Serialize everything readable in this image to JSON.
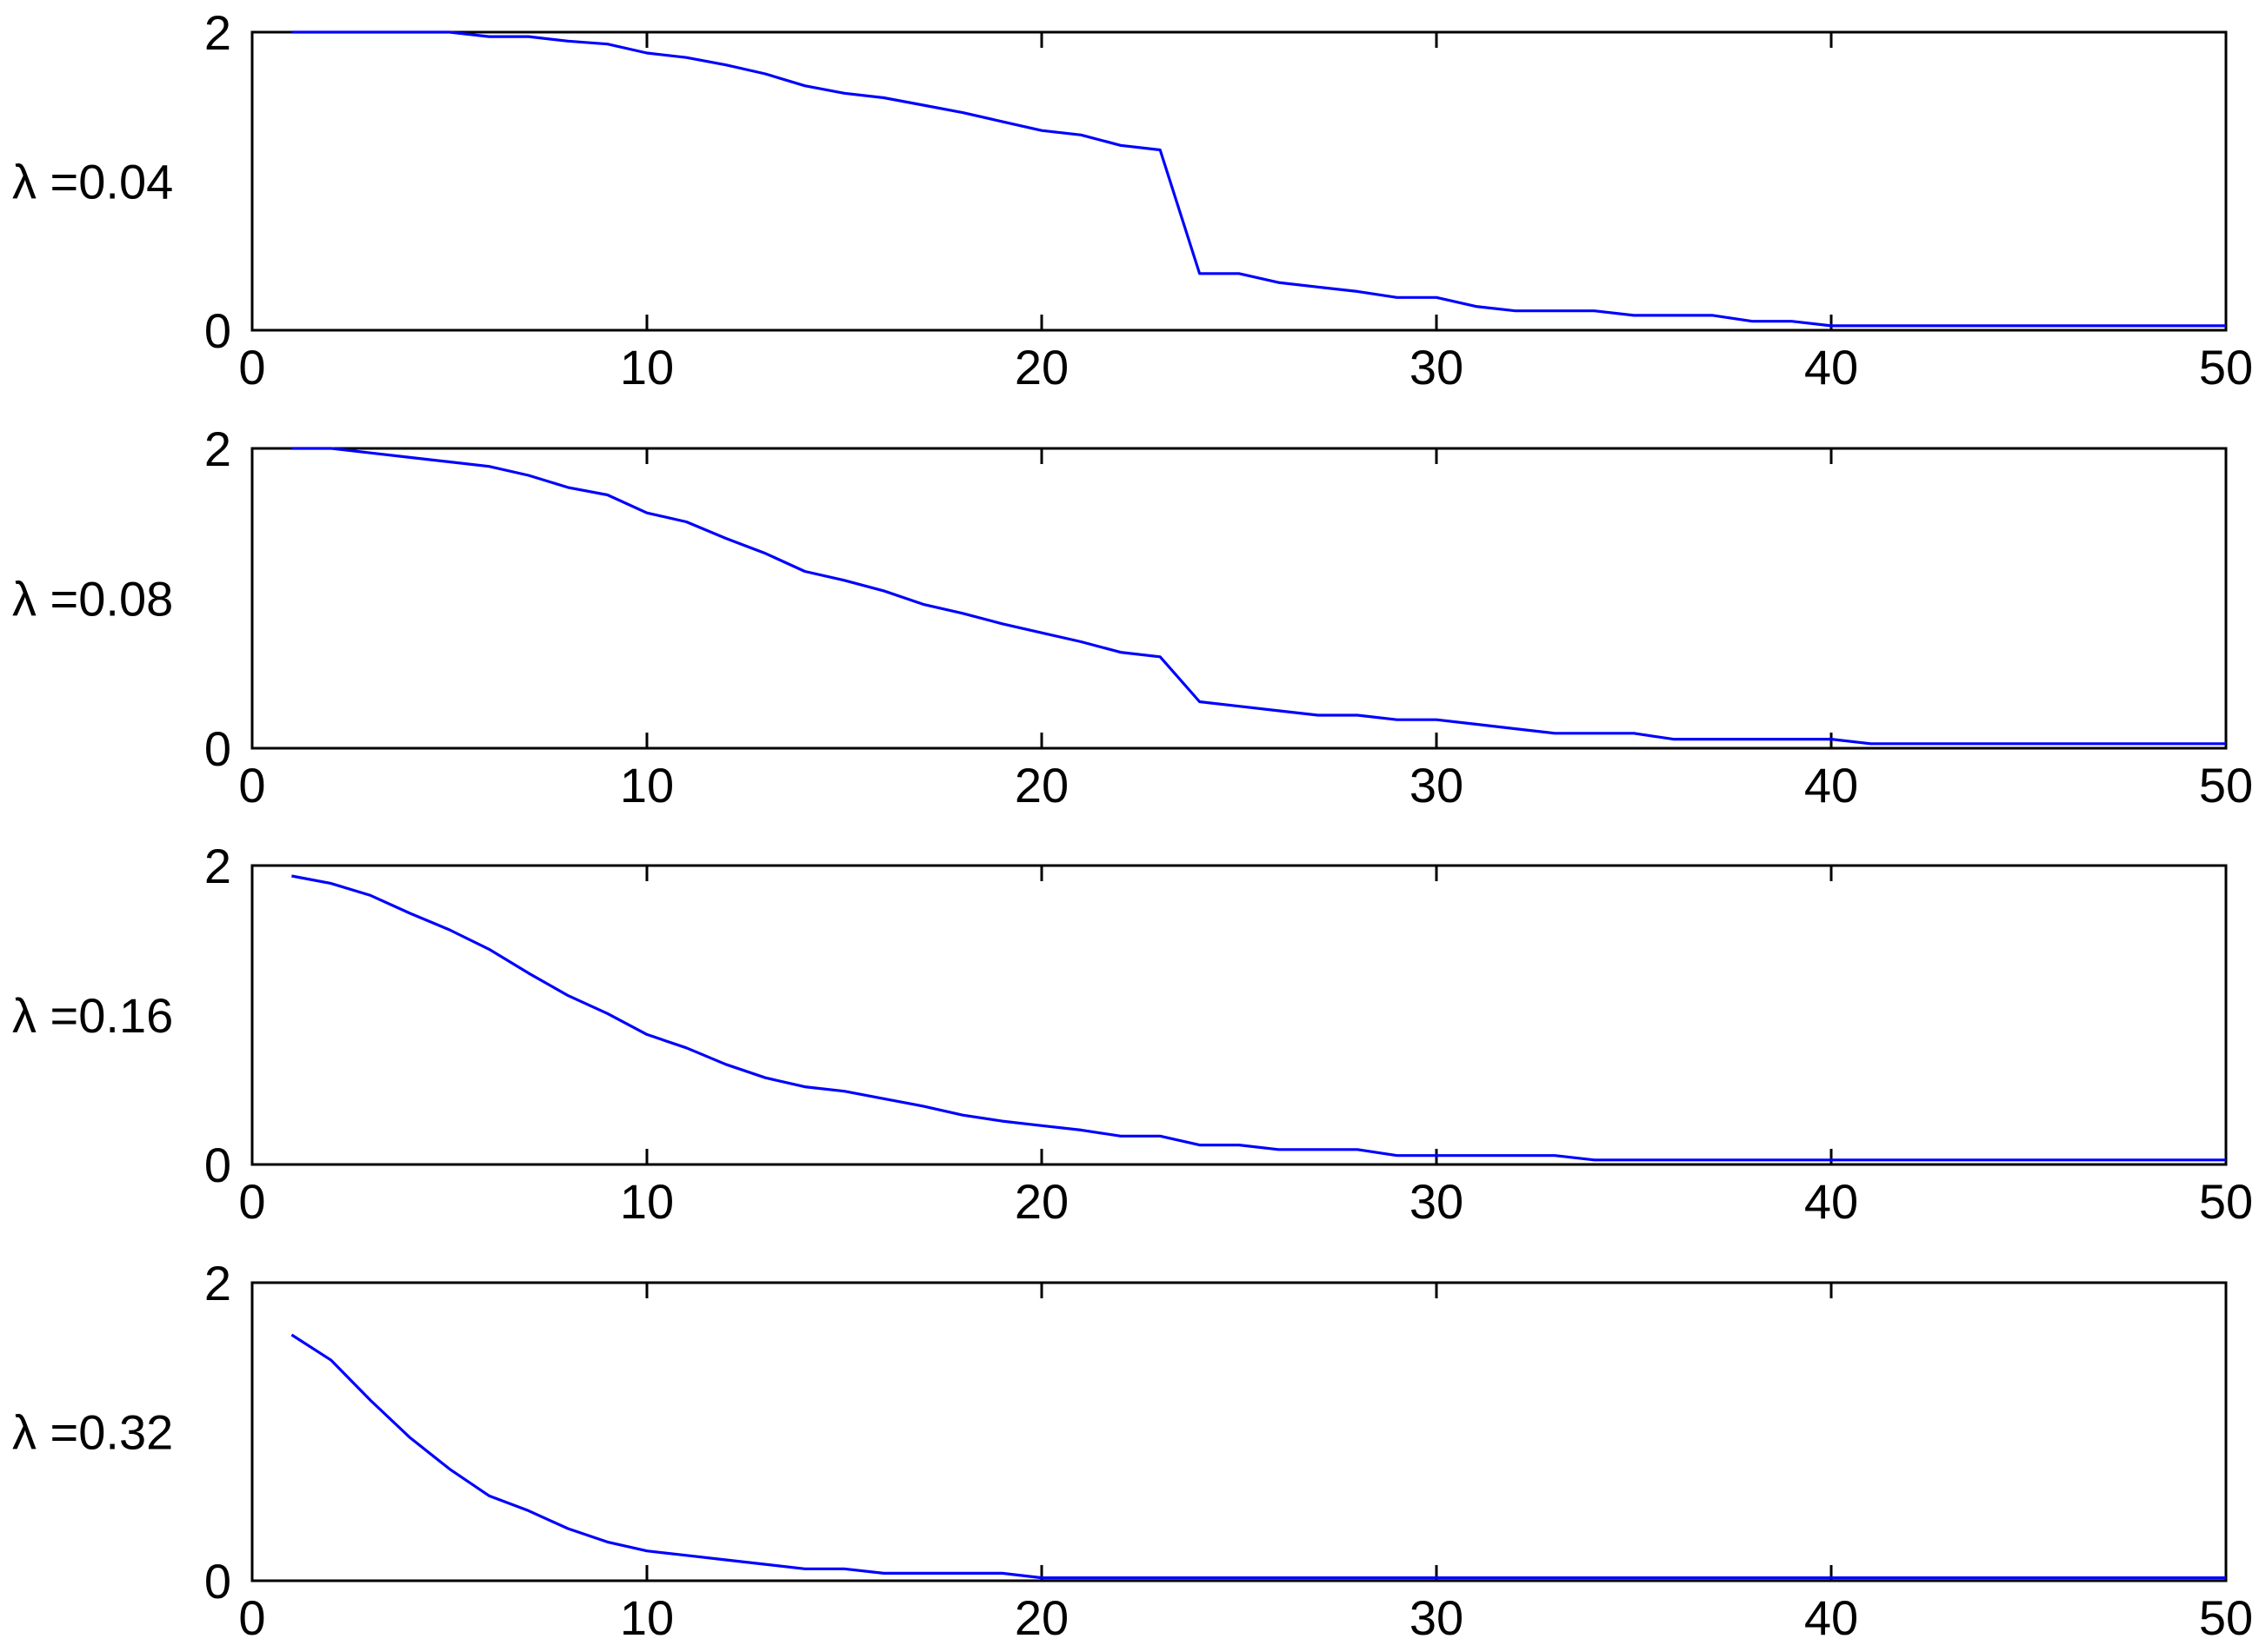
{
  "chart_data": [
    {
      "type": "line",
      "ylabel": "λ =0.04",
      "xlim": [
        0,
        50
      ],
      "ylim": [
        0,
        2
      ],
      "xticks": [
        "0",
        "10",
        "20",
        "30",
        "40",
        "50"
      ],
      "yticks": [
        "0",
        "2"
      ],
      "grid": false,
      "series": [
        {
          "color": "#0000ff",
          "x": [
            1,
            2,
            3,
            4,
            5,
            6,
            7,
            8,
            9,
            10,
            11,
            12,
            13,
            14,
            15,
            16,
            17,
            18,
            19,
            20,
            21,
            22,
            23,
            24,
            25,
            26,
            27,
            28,
            29,
            30,
            31,
            32,
            33,
            34,
            35,
            36,
            37,
            38,
            39,
            40,
            41,
            42,
            43,
            44,
            45,
            46,
            47,
            48,
            49,
            50
          ],
          "values": [
            2.0,
            2.0,
            2.0,
            2.0,
            2.0,
            1.97,
            1.97,
            1.94,
            1.92,
            1.86,
            1.83,
            1.78,
            1.72,
            1.64,
            1.59,
            1.56,
            1.51,
            1.46,
            1.4,
            1.34,
            1.31,
            1.24,
            1.21,
            0.38,
            0.38,
            0.32,
            0.29,
            0.26,
            0.22,
            0.22,
            0.16,
            0.13,
            0.13,
            0.13,
            0.1,
            0.1,
            0.1,
            0.06,
            0.06,
            0.03,
            0.03,
            0.03,
            0.03,
            0.03,
            0.03,
            0.03,
            0.03,
            0.03,
            0.03,
            0.03
          ]
        }
      ]
    },
    {
      "type": "line",
      "ylabel": "λ =0.08",
      "xlim": [
        0,
        50
      ],
      "ylim": [
        0,
        2
      ],
      "xticks": [
        "0",
        "10",
        "20",
        "30",
        "40",
        "50"
      ],
      "yticks": [
        "0",
        "2"
      ],
      "grid": false,
      "series": [
        {
          "color": "#0000ff",
          "x": [
            1,
            2,
            3,
            4,
            5,
            6,
            7,
            8,
            9,
            10,
            11,
            12,
            13,
            14,
            15,
            16,
            17,
            18,
            19,
            20,
            21,
            22,
            23,
            24,
            25,
            26,
            27,
            28,
            29,
            30,
            31,
            32,
            33,
            34,
            35,
            36,
            37,
            38,
            39,
            40,
            41,
            42,
            43,
            44,
            45,
            46,
            47,
            48,
            49,
            50
          ],
          "values": [
            2.0,
            2.0,
            1.97,
            1.94,
            1.91,
            1.88,
            1.82,
            1.74,
            1.69,
            1.57,
            1.51,
            1.4,
            1.3,
            1.18,
            1.12,
            1.05,
            0.96,
            0.9,
            0.83,
            0.77,
            0.71,
            0.64,
            0.61,
            0.31,
            0.28,
            0.25,
            0.22,
            0.22,
            0.19,
            0.19,
            0.16,
            0.13,
            0.1,
            0.1,
            0.1,
            0.06,
            0.06,
            0.06,
            0.06,
            0.06,
            0.03,
            0.03,
            0.03,
            0.03,
            0.03,
            0.03,
            0.03,
            0.03,
            0.03,
            0.03
          ]
        }
      ]
    },
    {
      "type": "line",
      "ylabel": "λ =0.16",
      "xlim": [
        0,
        50
      ],
      "ylim": [
        0,
        2
      ],
      "xticks": [
        "0",
        "10",
        "20",
        "30",
        "40",
        "50"
      ],
      "yticks": [
        "0",
        "2"
      ],
      "grid": false,
      "series": [
        {
          "color": "#0000ff",
          "x": [
            1,
            2,
            3,
            4,
            5,
            6,
            7,
            8,
            9,
            10,
            11,
            12,
            13,
            14,
            15,
            16,
            17,
            18,
            19,
            20,
            21,
            22,
            23,
            24,
            25,
            26,
            27,
            28,
            29,
            30,
            31,
            32,
            33,
            34,
            35,
            36,
            37,
            38,
            39,
            40,
            41,
            42,
            43,
            44,
            45,
            46,
            47,
            48,
            49,
            50
          ],
          "values": [
            1.93,
            1.88,
            1.8,
            1.68,
            1.57,
            1.44,
            1.28,
            1.13,
            1.01,
            0.87,
            0.78,
            0.67,
            0.58,
            0.52,
            0.49,
            0.44,
            0.39,
            0.33,
            0.29,
            0.26,
            0.23,
            0.19,
            0.19,
            0.13,
            0.13,
            0.1,
            0.1,
            0.1,
            0.06,
            0.06,
            0.06,
            0.06,
            0.06,
            0.03,
            0.03,
            0.03,
            0.03,
            0.03,
            0.03,
            0.03,
            0.03,
            0.03,
            0.03,
            0.03,
            0.03,
            0.03,
            0.03,
            0.03,
            0.03,
            0.03
          ]
        }
      ]
    },
    {
      "type": "line",
      "ylabel": "λ =0.32",
      "xlim": [
        0,
        50
      ],
      "ylim": [
        0,
        2
      ],
      "xticks": [
        "0",
        "10",
        "20",
        "30",
        "40",
        "50"
      ],
      "yticks": [
        "0",
        "2"
      ],
      "grid": false,
      "series": [
        {
          "color": "#0000ff",
          "x": [
            1,
            2,
            3,
            4,
            5,
            6,
            7,
            8,
            9,
            10,
            11,
            12,
            13,
            14,
            15,
            16,
            17,
            18,
            19,
            20,
            21,
            22,
            23,
            24,
            25,
            26,
            27,
            28,
            29,
            30,
            31,
            32,
            33,
            34,
            35,
            36,
            37,
            38,
            39,
            40,
            41,
            42,
            43,
            44,
            45,
            46,
            47,
            48,
            49,
            50
          ],
          "values": [
            1.65,
            1.48,
            1.21,
            0.96,
            0.75,
            0.57,
            0.47,
            0.35,
            0.26,
            0.2,
            0.17,
            0.14,
            0.11,
            0.08,
            0.08,
            0.05,
            0.05,
            0.05,
            0.05,
            0.02,
            0.02,
            0.02,
            0.02,
            0.02,
            0.02,
            0.02,
            0.02,
            0.02,
            0.02,
            0.02,
            0.02,
            0.02,
            0.02,
            0.02,
            0.02,
            0.02,
            0.02,
            0.02,
            0.02,
            0.02,
            0.02,
            0.02,
            0.02,
            0.02,
            0.02,
            0.02,
            0.02,
            0.02,
            0.02,
            0.02
          ]
        }
      ]
    }
  ]
}
